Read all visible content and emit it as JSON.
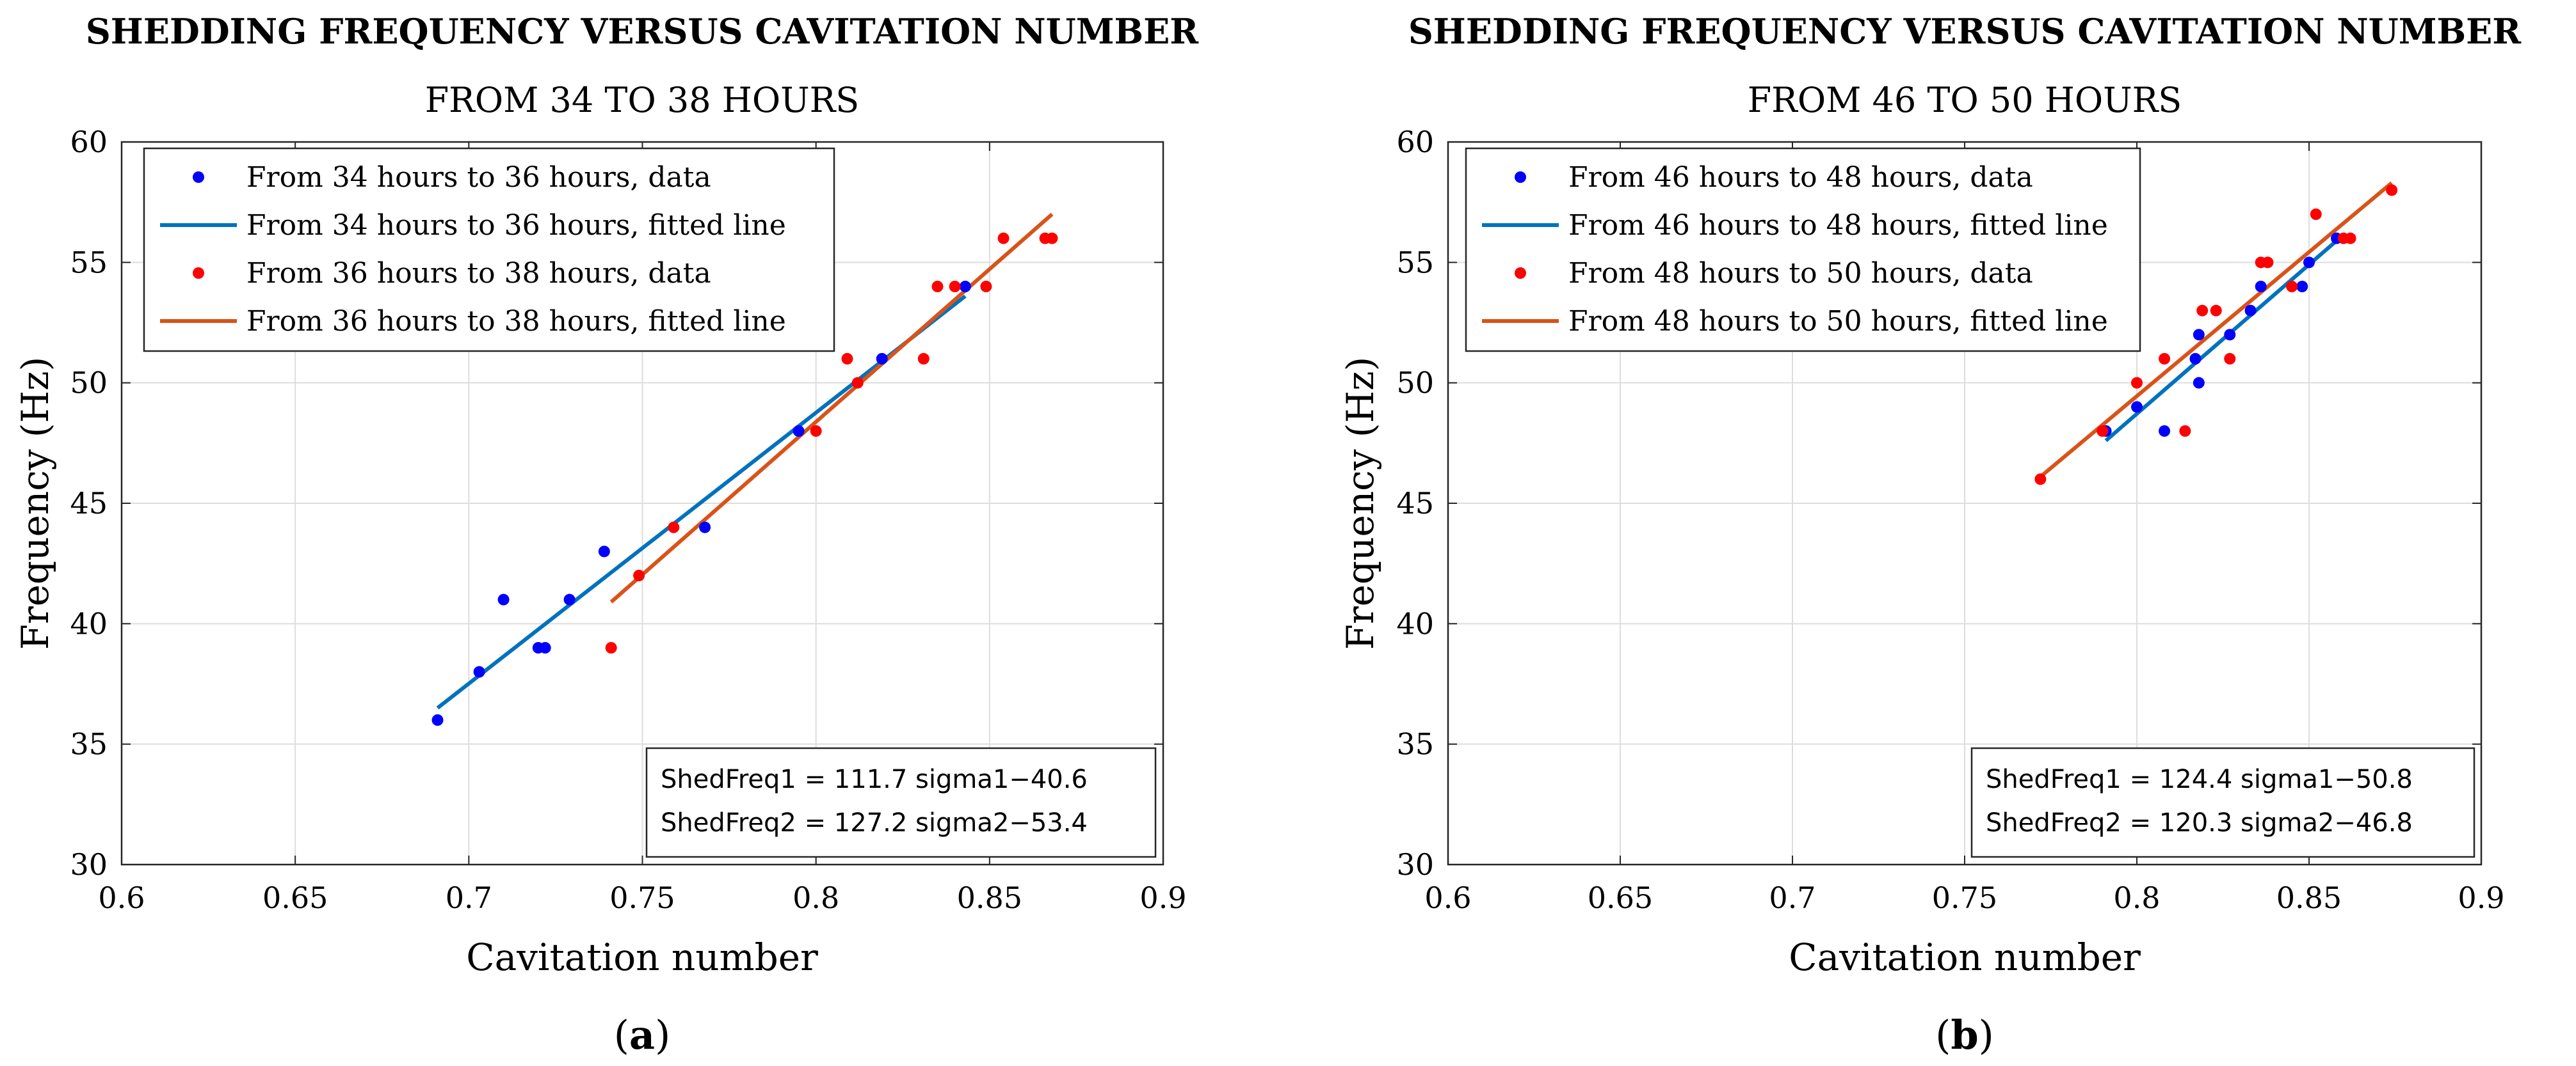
{
  "chart_data": [
    {
      "type": "scatter",
      "title": "SHEDDING FREQUENCY VERSUS CAVITATION NUMBER",
      "subtitle": "FROM 34 TO 38 HOURS",
      "panel_open": "(",
      "panel_letter": "a",
      "panel_close": ")",
      "xlabel": "Cavitation number",
      "ylabel": "Frequency (Hz)",
      "xlim": [
        0.6,
        0.9
      ],
      "ylim": [
        30,
        60
      ],
      "xticks": [
        0.6,
        0.65,
        0.7,
        0.75,
        0.8,
        0.85,
        0.9
      ],
      "xtick_labels": [
        "0.6",
        "0.65",
        "0.7",
        "0.75",
        "0.8",
        "0.85",
        "0.9"
      ],
      "yticks": [
        30,
        35,
        40,
        45,
        50,
        55,
        60
      ],
      "ytick_labels": [
        "30",
        "35",
        "40",
        "45",
        "50",
        "55",
        "60"
      ],
      "grid": true,
      "legend_position": "top-left",
      "series": [
        {
          "name": "From 34 hours to 36 hours, data",
          "kind": "points",
          "color": "#0000ff",
          "x": [
            0.691,
            0.703,
            0.71,
            0.72,
            0.722,
            0.729,
            0.739,
            0.768,
            0.795,
            0.819,
            0.843
          ],
          "y": [
            36,
            38,
            41,
            39,
            39,
            41,
            43,
            44,
            48,
            51,
            54
          ]
        },
        {
          "name": "From 34 hours to 36 hours, fitted line",
          "kind": "line",
          "color": "#0072bd",
          "x": [
            0.691,
            0.843
          ],
          "y": [
            36.5,
            53.6
          ]
        },
        {
          "name": "From 36 hours to 38 hours, data",
          "kind": "points",
          "color": "#ff0000",
          "x": [
            0.741,
            0.749,
            0.759,
            0.8,
            0.809,
            0.812,
            0.831,
            0.835,
            0.84,
            0.849,
            0.854,
            0.866,
            0.868
          ],
          "y": [
            39,
            42,
            44,
            48,
            51,
            50,
            51,
            54,
            54,
            54,
            56,
            56,
            56
          ]
        },
        {
          "name": "From 36 hours to 38 hours, fitted line",
          "kind": "line",
          "color": "#d95319",
          "x": [
            0.741,
            0.868
          ],
          "y": [
            40.9,
            57.0
          ]
        }
      ],
      "equations": [
        "ShedFreq1 = 111.7 sigma1−40.6",
        "ShedFreq2 = 127.2 sigma2−53.4"
      ]
    },
    {
      "type": "scatter",
      "title": "SHEDDING FREQUENCY VERSUS CAVITATION NUMBER",
      "subtitle": "FROM 46 TO 50 HOURS",
      "panel_open": "(",
      "panel_letter": "b",
      "panel_close": ")",
      "xlabel": "Cavitation number",
      "ylabel": "Frequency (Hz)",
      "xlim": [
        0.6,
        0.9
      ],
      "ylim": [
        30,
        60
      ],
      "xticks": [
        0.6,
        0.65,
        0.7,
        0.75,
        0.8,
        0.85,
        0.9
      ],
      "xtick_labels": [
        "0.6",
        "0.65",
        "0.7",
        "0.75",
        "0.8",
        "0.85",
        "0.9"
      ],
      "yticks": [
        30,
        35,
        40,
        45,
        50,
        55,
        60
      ],
      "ytick_labels": [
        "30",
        "35",
        "40",
        "45",
        "50",
        "55",
        "60"
      ],
      "grid": true,
      "legend_position": "top-left",
      "series": [
        {
          "name": "From 46 hours to 48 hours, data",
          "kind": "points",
          "color": "#0000ff",
          "x": [
            0.791,
            0.8,
            0.808,
            0.817,
            0.818,
            0.818,
            0.827,
            0.833,
            0.836,
            0.848,
            0.85,
            0.858
          ],
          "y": [
            48,
            49,
            48,
            51,
            52,
            50,
            52,
            53,
            54,
            54,
            55,
            56
          ]
        },
        {
          "name": "From 46 hours to 48 hours, fitted line",
          "kind": "line",
          "color": "#0072bd",
          "x": [
            0.791,
            0.858
          ],
          "y": [
            47.6,
            55.9
          ]
        },
        {
          "name": "From 48 hours to 50 hours, data",
          "kind": "points",
          "color": "#ff0000",
          "x": [
            0.772,
            0.79,
            0.8,
            0.808,
            0.814,
            0.819,
            0.823,
            0.827,
            0.836,
            0.838,
            0.845,
            0.852,
            0.86,
            0.862,
            0.874
          ],
          "y": [
            46,
            48,
            50,
            51,
            48,
            53,
            53,
            51,
            55,
            55,
            54,
            57,
            56,
            56,
            58
          ]
        },
        {
          "name": "From 48 hours to 50 hours, fitted line",
          "kind": "line",
          "color": "#d95319",
          "x": [
            0.772,
            0.874
          ],
          "y": [
            46.1,
            58.3
          ]
        }
      ],
      "equations": [
        "ShedFreq1 = 124.4 sigma1−50.8",
        "ShedFreq2 = 120.3 sigma2−46.8"
      ]
    }
  ]
}
